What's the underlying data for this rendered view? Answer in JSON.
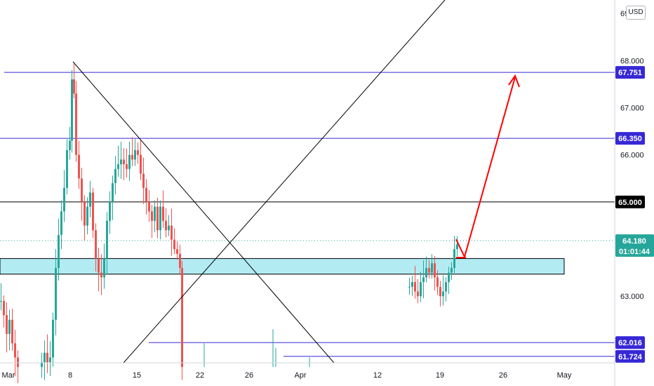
{
  "currency_badge": "USD",
  "chart_data": {
    "type": "candlestick",
    "y_range": [
      61.55,
      69.25
    ],
    "x_ticks": [
      "Mar",
      "8",
      "15",
      "22",
      "26",
      "Apr",
      "12",
      "19",
      "26",
      "May"
    ],
    "y_ticks": [
      "69.000",
      "68.000",
      "67.000",
      "66.000",
      "65.000",
      "63.000"
    ],
    "price_tags": [
      {
        "label": "67.751",
        "value": 67.751,
        "color": "#3728d6",
        "text_color": "#ffffff"
      },
      {
        "label": "66.350",
        "value": 66.35,
        "color": "#3728d6",
        "text_color": "#ffffff"
      },
      {
        "label": "65.000",
        "value": 65.0,
        "color": "#000000",
        "text_color": "#ffffff"
      },
      {
        "label": "62.016",
        "value": 62.016,
        "color": "#3728d6",
        "text_color": "#ffffff"
      },
      {
        "label": "61.724",
        "value": 61.724,
        "color": "#3728d6",
        "text_color": "#ffffff"
      }
    ],
    "last_price": {
      "label": "64.180",
      "countdown": "01:01:44",
      "value": 64.18,
      "color": "#26a69a"
    },
    "support_zone": {
      "low": 63.47,
      "high": 63.8,
      "color": "#b2ebf2"
    },
    "colors": {
      "up": "#26a69a",
      "down": "#ef5350",
      "resistance": "#3728d6",
      "arrow": "#ff0000"
    }
  }
}
